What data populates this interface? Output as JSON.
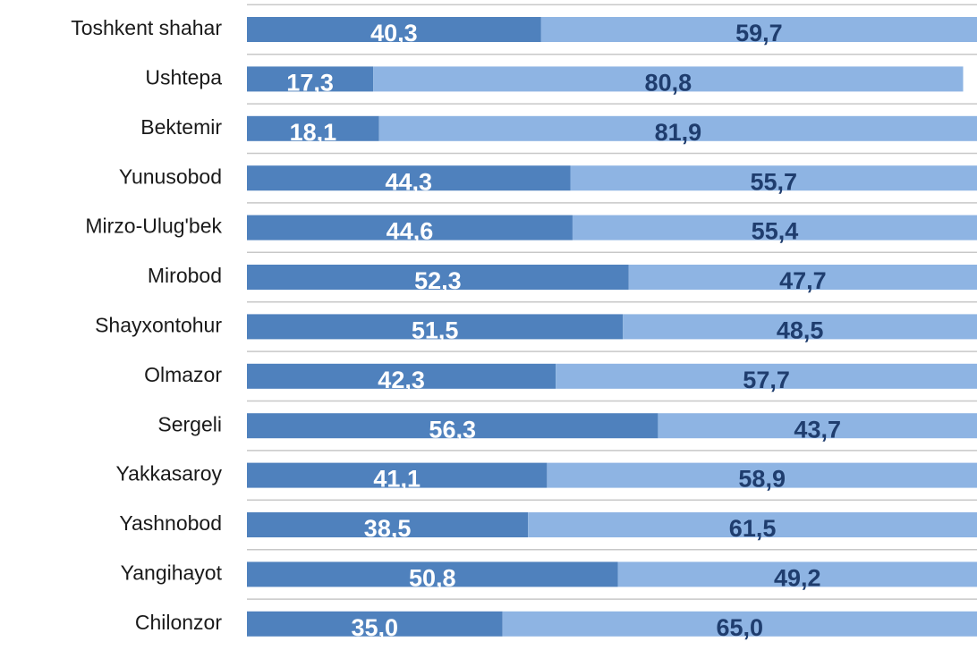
{
  "chart_data": {
    "type": "stacked-barh",
    "categories": [
      "Toshkent shahar",
      "Ushtepa",
      "Bektemir",
      "Yunusobod",
      "Mirzo-Ulug'bek",
      "Mirobod",
      "Shayxontohur",
      "Olmazor",
      "Sergeli",
      "Yakkasaroy",
      "Yashnobod",
      "Yangihayot",
      "Chilonzor"
    ],
    "xlim": [
      0,
      100
    ],
    "series": [
      {
        "color": "#4f81bd",
        "label_color": "#ffffff",
        "values": [
          40.3,
          17.3,
          18.1,
          44.3,
          44.6,
          52.3,
          51.5,
          42.3,
          56.3,
          41.1,
          38.5,
          50.8,
          35.0
        ],
        "value_labels": [
          "40,3",
          "17,3",
          "18,1",
          "44,3",
          "44,6",
          "52,3",
          "51,5",
          "42,3",
          "56,3",
          "41,1",
          "38,5",
          "50,8",
          "35,0"
        ]
      },
      {
        "color": "#8eb4e3",
        "label_color": "#1f3d6e",
        "values": [
          59.7,
          80.8,
          81.9,
          55.7,
          55.4,
          47.7,
          48.5,
          57.7,
          43.7,
          58.9,
          61.5,
          49.2,
          65.0
        ],
        "value_labels": [
          "59,7",
          "80,8",
          "81,9",
          "55,7",
          "55,4",
          "47,7",
          "48,5",
          "57,7",
          "43,7",
          "58,9",
          "61,5",
          "49,2",
          "65,0"
        ]
      }
    ]
  }
}
